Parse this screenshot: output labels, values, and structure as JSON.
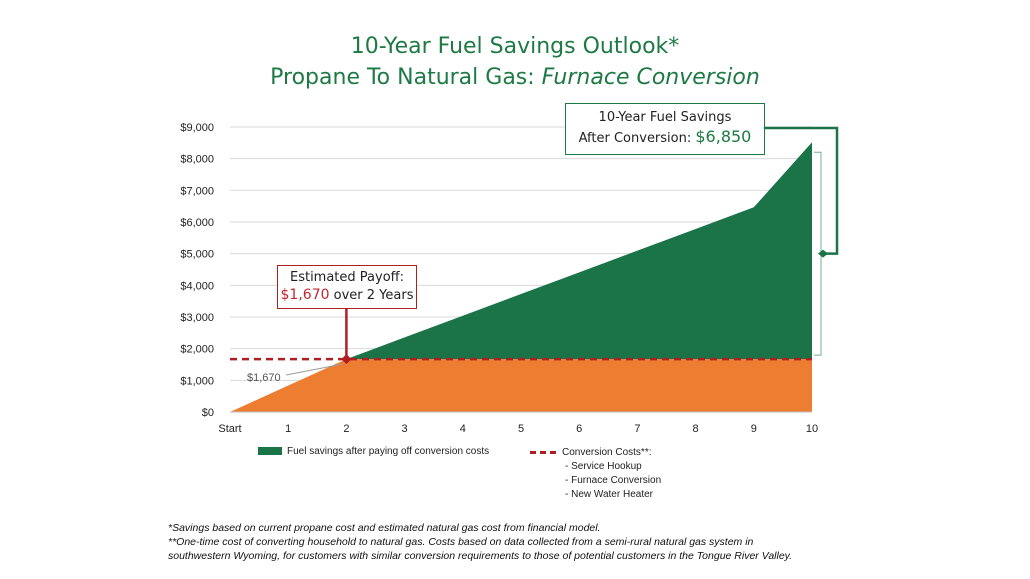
{
  "title": {
    "line1": "10-Year Fuel Savings Outlook*",
    "line2_prefix": "Propane To Natural Gas: ",
    "line2_italic": "Furnace Conversion"
  },
  "chart_data": {
    "type": "area",
    "x_categories": [
      "Start",
      "1",
      "2",
      "3",
      "4",
      "5",
      "6",
      "7",
      "8",
      "9",
      "10"
    ],
    "ylim": [
      0,
      9000
    ],
    "y_ticks": [
      "$0",
      "$1,000",
      "$2,000",
      "$3,000",
      "$4,000",
      "$5,000",
      "$6,000",
      "$7,000",
      "$8,000",
      "$9,000"
    ],
    "grid": true,
    "series": [
      {
        "name": "Conversion Costs**:",
        "values": [
          0,
          835,
          1670,
          1670,
          1670,
          1670,
          1670,
          1670,
          1670,
          1670,
          1670
        ],
        "color": "#ed7d31"
      },
      {
        "name": "Fuel savings after paying off conversion costs",
        "values": [
          0,
          0,
          0,
          685,
          1370,
          2055,
          2740,
          3425,
          4110,
          4795,
          6850
        ],
        "color": "#1b7447"
      }
    ],
    "payoff_line": {
      "value": 1670,
      "color": "#b01e23"
    },
    "annotations": {
      "payoff_value_label": "$1,670"
    },
    "legend_position": "bottom"
  },
  "savings_box": {
    "line1": "10-Year Fuel Savings",
    "line2_prefix": "After Conversion: ",
    "amount": "$6,850"
  },
  "payoff_box": {
    "line1": "Estimated Payoff:",
    "amount": "$1,670",
    "suffix": " over 2 Years"
  },
  "legend": {
    "green_label": "Fuel savings after paying off conversion costs",
    "red_label": "Conversion Costs**:",
    "red_items": [
      "- Service Hookup",
      "- Furnace Conversion",
      "- New Water Heater"
    ]
  },
  "footnotes": {
    "line1": "*Savings based on current propane cost and estimated natural gas cost from financial model.",
    "line2": "**One-time cost of converting household to natural gas. Costs based on data collected from a semi-rural natural gas system in",
    "line3": "southwestern Wyoming, for customers with similar conversion requirements to those of potential customers in the Tongue River Valley."
  },
  "colors": {
    "green": "#1b7447",
    "orange": "#ed7d31",
    "red": "#b01e23",
    "title_green": "#1e7a45"
  }
}
